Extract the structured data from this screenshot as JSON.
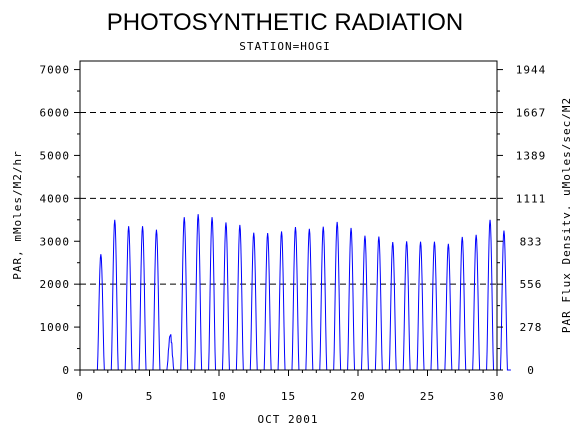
{
  "chart_data": {
    "type": "line",
    "title": "PHOTOSYNTHETIC RADIATION",
    "subtitle": "STATION=HOGI",
    "xlabel": "OCT 2001",
    "ylabel": "PAR, mMoles/M2/hr",
    "y2label": "PAR Flux Density, uMoles/sec/M2",
    "xlim": [
      0,
      30
    ],
    "ylim": [
      0,
      7200
    ],
    "x_ticks": [
      "0",
      "5",
      "10",
      "15",
      "20",
      "25",
      "30"
    ],
    "y_ticks": [
      "0",
      "1000",
      "2000",
      "3000",
      "4000",
      "5000",
      "6000",
      "7000"
    ],
    "y2_ticks": [
      "0",
      "278",
      "556",
      "833",
      "1111",
      "1389",
      "1667",
      "1944"
    ],
    "gridlines_y": [
      2000,
      4000,
      6000
    ],
    "grid_style": "dashed",
    "series": [
      {
        "color": "#0000ff",
        "daily_peaks": [
          {
            "day": 1,
            "peak": 2700
          },
          {
            "day": 2,
            "peak": 3500
          },
          {
            "day": 3,
            "peak": 3350
          },
          {
            "day": 4,
            "peak": 3350
          },
          {
            "day": 5,
            "peak": 3270
          },
          {
            "day": 6,
            "peak": 900
          },
          {
            "day": 7,
            "peak": 3560
          },
          {
            "day": 8,
            "peak": 3630
          },
          {
            "day": 9,
            "peak": 3560
          },
          {
            "day": 10,
            "peak": 3440
          },
          {
            "day": 11,
            "peak": 3380
          },
          {
            "day": 12,
            "peak": 3200
          },
          {
            "day": 13,
            "peak": 3190
          },
          {
            "day": 14,
            "peak": 3230
          },
          {
            "day": 15,
            "peak": 3330
          },
          {
            "day": 16,
            "peak": 3290
          },
          {
            "day": 17,
            "peak": 3340
          },
          {
            "day": 18,
            "peak": 3450
          },
          {
            "day": 19,
            "peak": 3310
          },
          {
            "day": 20,
            "peak": 3130
          },
          {
            "day": 21,
            "peak": 3110
          },
          {
            "day": 22,
            "peak": 2980
          },
          {
            "day": 23,
            "peak": 3000
          },
          {
            "day": 24,
            "peak": 2990
          },
          {
            "day": 25,
            "peak": 2990
          },
          {
            "day": 26,
            "peak": 2940
          },
          {
            "day": 27,
            "peak": 3100
          },
          {
            "day": 28,
            "peak": 3150
          },
          {
            "day": 29,
            "peak": 3500
          },
          {
            "day": 30,
            "peak": 3250
          }
        ]
      }
    ]
  }
}
